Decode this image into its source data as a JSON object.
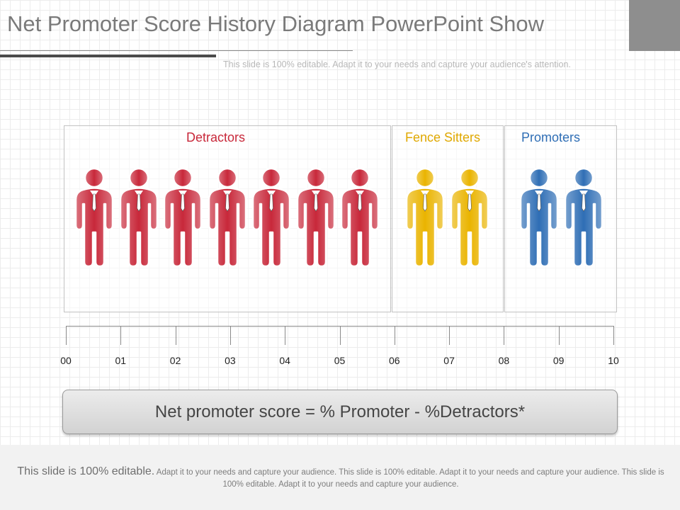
{
  "slide": {
    "title": "Net Promoter Score History Diagram PowerPoint Show",
    "subtitle": "This slide is 100% editable. Adapt it to your needs and capture your audience's attention."
  },
  "groups": [
    {
      "label": "Detractors",
      "color": "#c8283a",
      "count": 7
    },
    {
      "label": "Fence Sitters",
      "color": "#eab400",
      "count": 2
    },
    {
      "label": "Promoters",
      "color": "#2f6eb5",
      "count": 2
    }
  ],
  "scale": {
    "ticks": [
      "00",
      "01",
      "02",
      "03",
      "04",
      "05",
      "06",
      "07",
      "08",
      "09",
      "10"
    ]
  },
  "formula": "Net promoter score = % Promoter - %Detractors*",
  "footer": {
    "lead": "This slide is 100% editable.",
    "body": " Adapt it to your needs and capture your audience. This slide is 100% editable. Adapt it to your needs and capture your audience. This slide is 100% editable. Adapt it to your needs and capture your audience."
  },
  "colors": {
    "detractor_label": "#c8283a",
    "fence_label": "#e0a800",
    "promoter_label": "#2f6eb5"
  }
}
